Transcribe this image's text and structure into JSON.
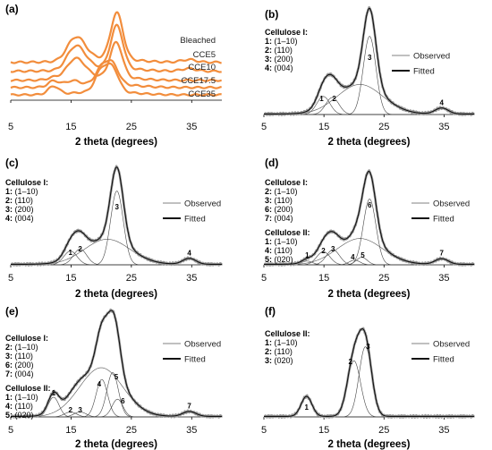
{
  "chart_data": [
    {
      "panel": "(a)",
      "type": "line",
      "xlabel": "2 theta (degrees)",
      "xlim": [
        5,
        40
      ],
      "xticks": [
        "5",
        "15",
        "25",
        "35"
      ],
      "line_color": "#f28d3c",
      "series": [
        {
          "name": "Bleached",
          "peaks": [
            [
              15.1,
              0.22,
              1.2
            ],
            [
              16.5,
              0.28,
              1.3
            ],
            [
              22.6,
              0.85,
              1.0
            ],
            [
              34.5,
              0.05,
              1.2
            ]
          ]
        },
        {
          "name": "CCE5",
          "peaks": [
            [
              15.1,
              0.22,
              1.2
            ],
            [
              16.5,
              0.28,
              1.3
            ],
            [
              22.6,
              0.78,
              1.0
            ],
            [
              34.5,
              0.05,
              1.2
            ]
          ]
        },
        {
          "name": "CCE10",
          "peaks": [
            [
              12.2,
              0.05,
              1.0
            ],
            [
              15.1,
              0.22,
              1.2
            ],
            [
              16.5,
              0.25,
              1.3
            ],
            [
              22.5,
              0.7,
              1.0
            ]
          ]
        },
        {
          "name": "CCE17.5",
          "peaks": [
            [
              12.1,
              0.12,
              0.9
            ],
            [
              15.2,
              0.1,
              1.2
            ],
            [
              20.1,
              0.32,
              1.0
            ],
            [
              21.9,
              0.38,
              1.0
            ]
          ]
        },
        {
          "name": "CCE35",
          "peaks": [
            [
              12.1,
              0.18,
              0.9
            ],
            [
              20.0,
              0.45,
              1.0
            ],
            [
              21.9,
              0.5,
              1.0
            ]
          ]
        }
      ]
    },
    {
      "panel": "(b)",
      "type": "line",
      "xlabel": "2 theta (degrees)",
      "xlim": [
        5,
        40
      ],
      "xticks": [
        "5",
        "15",
        "25",
        "35"
      ],
      "legend": {
        "observed": "Observed",
        "fitted": "Fitted"
      },
      "annotation": {
        "header": "Cellulose I:",
        "lines": [
          {
            "n": "1:",
            "t": "(1–10)"
          },
          {
            "n": "2:",
            "t": "(110)"
          },
          {
            "n": "3:",
            "t": "(200)"
          },
          {
            "n": "4:",
            "t": "(004)"
          }
        ]
      },
      "amorphous": [
        21.0,
        0.3,
        3.8
      ],
      "peaks": [
        {
          "label": "1",
          "x": 14.9,
          "h": 0.18,
          "w": 1.1
        },
        {
          "label": "2",
          "x": 16.4,
          "h": 0.17,
          "w": 1.1
        },
        {
          "label": "3",
          "x": 22.6,
          "h": 0.78,
          "w": 1.05
        },
        {
          "label": "4",
          "x": 34.6,
          "h": 0.06,
          "w": 1.1
        }
      ]
    },
    {
      "panel": "(c)",
      "type": "line",
      "xlabel": "2 theta (degrees)",
      "xlim": [
        5,
        40
      ],
      "xticks": [
        "5",
        "15",
        "25",
        "35"
      ],
      "legend": {
        "observed": "Observed",
        "fitted": "Fitted"
      },
      "annotation": {
        "header": "Cellulose I:",
        "lines": [
          {
            "n": "1:",
            "t": "(1–10)"
          },
          {
            "n": "2:",
            "t": "(110)"
          },
          {
            "n": "3:",
            "t": "(200)"
          },
          {
            "n": "4:",
            "t": "(004)"
          }
        ]
      },
      "amorphous": [
        21.0,
        0.26,
        3.8
      ],
      "peaks": [
        {
          "label": "1",
          "x": 14.9,
          "h": 0.14,
          "w": 1.1
        },
        {
          "label": "2",
          "x": 16.5,
          "h": 0.16,
          "w": 1.1
        },
        {
          "label": "3",
          "x": 22.6,
          "h": 0.75,
          "w": 1.05
        },
        {
          "label": "4",
          "x": 34.6,
          "h": 0.06,
          "w": 1.1
        }
      ]
    },
    {
      "panel": "(d)",
      "type": "line",
      "xlabel": "2 theta (degrees)",
      "xlim": [
        5,
        40
      ],
      "xticks": [
        "5",
        "15",
        "25",
        "35"
      ],
      "legend": {
        "observed": "Observed",
        "fitted": "Fitted"
      },
      "annotation": {
        "header": "Cellulose I:",
        "lines": [
          {
            "n": "2:",
            "t": "(1–10)"
          },
          {
            "n": "3:",
            "t": "(110)"
          },
          {
            "n": "6:",
            "t": "(200)"
          },
          {
            "n": "7:",
            "t": "(004)"
          }
        ],
        "header2": "Cellulose II:",
        "lines2": [
          {
            "n": "1:",
            "t": "(1–10)"
          },
          {
            "n": "4:",
            "t": "(110)"
          },
          {
            "n": "5:",
            "t": "(020)"
          }
        ]
      },
      "amorphous": [
        21.0,
        0.28,
        3.8
      ],
      "peaks": [
        {
          "label": "1",
          "x": 12.2,
          "h": 0.04,
          "w": 0.9
        },
        {
          "label": "2",
          "x": 14.9,
          "h": 0.14,
          "w": 1.1
        },
        {
          "label": "3",
          "x": 16.5,
          "h": 0.16,
          "w": 1.1
        },
        {
          "label": "4",
          "x": 20.1,
          "h": 0.05,
          "w": 0.9
        },
        {
          "label": "5",
          "x": 21.3,
          "h": 0.08,
          "w": 0.9
        },
        {
          "label": "6",
          "x": 22.6,
          "h": 0.7,
          "w": 1.05
        },
        {
          "label": "7",
          "x": 34.6,
          "h": 0.06,
          "w": 1.1
        }
      ]
    },
    {
      "panel": "(e)",
      "type": "line",
      "xlabel": "2 theta (degrees)",
      "xlim": [
        5,
        40
      ],
      "xticks": [
        "5",
        "15",
        "25",
        "35"
      ],
      "legend": {
        "observed": "Observed",
        "fitted": "Fitted"
      },
      "annotation": {
        "header": "Cellulose I:",
        "lines": [
          {
            "n": "2:",
            "t": "(1–10)"
          },
          {
            "n": "3:",
            "t": "(110)"
          },
          {
            "n": "6:",
            "t": "(200)"
          },
          {
            "n": "7:",
            "t": "(004)"
          }
        ],
        "header2": "Cellulose II:",
        "lines2": [
          {
            "n": "1:",
            "t": "(1–10)"
          },
          {
            "n": "4:",
            "t": "(110)"
          },
          {
            "n": "5:",
            "t": "(020)"
          }
        ]
      },
      "amorphous": [
        20.0,
        0.5,
        3.6
      ],
      "peaks": [
        {
          "label": "1",
          "x": 12.1,
          "h": 0.2,
          "w": 0.9
        },
        {
          "label": "2",
          "x": 14.9,
          "h": 0.05,
          "w": 1.0
        },
        {
          "label": "3",
          "x": 16.5,
          "h": 0.05,
          "w": 1.0
        },
        {
          "label": "4",
          "x": 20.1,
          "h": 0.38,
          "w": 0.95
        },
        {
          "label": "5",
          "x": 21.9,
          "h": 0.45,
          "w": 0.95
        },
        {
          "label": "6",
          "x": 22.7,
          "h": 0.18,
          "w": 0.9
        },
        {
          "label": "7",
          "x": 34.6,
          "h": 0.05,
          "w": 1.1
        }
      ]
    },
    {
      "panel": "(f)",
      "type": "line",
      "xlabel": "2 theta (degrees)",
      "xlim": [
        5,
        40
      ],
      "xticks": [
        "5",
        "15",
        "25",
        "35"
      ],
      "legend": {
        "observed": "Observed",
        "fitted": "Fitted"
      },
      "annotation": {
        "header": "Cellulose II:",
        "lines": [
          {
            "n": "1:",
            "t": "(1–10)"
          },
          {
            "n": "2:",
            "t": "(110)"
          },
          {
            "n": "3:",
            "t": "(020)"
          }
        ]
      },
      "amorphous": null,
      "peaks": [
        {
          "label": "1",
          "x": 12.1,
          "h": 0.2,
          "w": 0.9
        },
        {
          "label": "2",
          "x": 20.0,
          "h": 0.56,
          "w": 1.1
        },
        {
          "label": "3",
          "x": 21.9,
          "h": 0.7,
          "w": 1.05
        }
      ]
    }
  ]
}
